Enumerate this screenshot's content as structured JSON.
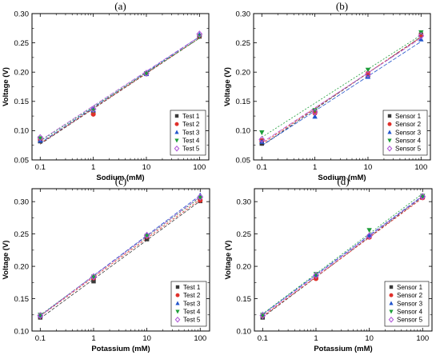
{
  "chart_data": [
    {
      "type": "scatter",
      "panel_label": "(a)",
      "xlabel": "Sodium (mM)",
      "ylabel": "Voltage (V)",
      "x_scale": "log",
      "x": [
        0.1,
        1,
        10,
        100
      ],
      "x_tick_labels": [
        "0.1",
        "1",
        "10",
        "100"
      ],
      "xlim": [
        0.07,
        150
      ],
      "ylim": [
        0.05,
        0.3
      ],
      "y_ticks": [
        0.05,
        0.1,
        0.15,
        0.2,
        0.25,
        0.3
      ],
      "y_tick_labels": [
        "0.05",
        "0.10",
        "0.15",
        "0.20",
        "0.25",
        "0.30"
      ],
      "legend_position": "bottom-right",
      "series": [
        {
          "name": "Test 1",
          "marker": "square",
          "color": "#3a3a3a",
          "values": [
            0.082,
            0.13,
            0.197,
            0.261
          ]
        },
        {
          "name": "Test 2",
          "marker": "circle",
          "color": "#e0302a",
          "values": [
            0.085,
            0.128,
            0.198,
            0.262
          ]
        },
        {
          "name": "Test 3",
          "marker": "triangle-up",
          "color": "#2255cc",
          "values": [
            0.083,
            0.135,
            0.197,
            0.264
          ]
        },
        {
          "name": "Test 4",
          "marker": "triangle-down",
          "color": "#1e9e3a",
          "values": [
            0.087,
            0.134,
            0.198,
            0.261
          ]
        },
        {
          "name": "Test 5",
          "marker": "diamond",
          "color": "#b05ad8",
          "values": [
            0.088,
            0.137,
            0.198,
            0.265
          ]
        }
      ]
    },
    {
      "type": "scatter",
      "panel_label": "(b)",
      "xlabel": "Sodium (mM)",
      "ylabel": "Voltage (V)",
      "x_scale": "log",
      "x": [
        0.1,
        1,
        10,
        100
      ],
      "x_tick_labels": [
        "0.1",
        "1",
        "10",
        "100"
      ],
      "xlim": [
        0.07,
        150
      ],
      "ylim": [
        0.05,
        0.3
      ],
      "y_ticks": [
        0.05,
        0.1,
        0.15,
        0.2,
        0.25,
        0.3
      ],
      "y_tick_labels": [
        "0.05",
        "0.10",
        "0.15",
        "0.20",
        "0.25",
        "0.30"
      ],
      "legend_position": "bottom-right",
      "series": [
        {
          "name": "Sensor 1",
          "marker": "square",
          "color": "#3a3a3a",
          "values": [
            0.078,
            0.133,
            0.195,
            0.264
          ]
        },
        {
          "name": "Sensor 2",
          "marker": "circle",
          "color": "#e0302a",
          "values": [
            0.083,
            0.13,
            0.198,
            0.263
          ]
        },
        {
          "name": "Sensor 3",
          "marker": "triangle-up",
          "color": "#2255cc",
          "values": [
            0.081,
            0.124,
            0.192,
            0.256
          ]
        },
        {
          "name": "Sensor 4",
          "marker": "triangle-down",
          "color": "#1e9e3a",
          "values": [
            0.097,
            0.135,
            0.204,
            0.268
          ]
        },
        {
          "name": "Sensor 5",
          "marker": "diamond",
          "color": "#b05ad8",
          "values": [
            0.085,
            0.132,
            0.196,
            0.262
          ]
        }
      ]
    },
    {
      "type": "scatter",
      "panel_label": "(c)",
      "xlabel": "Potassium (mM)",
      "ylabel": "Voltage (V)",
      "x_scale": "log",
      "x": [
        0.1,
        1,
        10,
        100
      ],
      "x_tick_labels": [
        "0.1",
        "1",
        "10",
        "100"
      ],
      "xlim": [
        0.07,
        150
      ],
      "ylim": [
        0.1,
        0.32
      ],
      "y_ticks": [
        0.1,
        0.15,
        0.2,
        0.25,
        0.3
      ],
      "y_tick_labels": [
        "0.10",
        "0.15",
        "0.20",
        "0.25",
        "0.30"
      ],
      "legend_position": "bottom-right",
      "series": [
        {
          "name": "Test 1",
          "marker": "square",
          "color": "#3a3a3a",
          "values": [
            0.121,
            0.177,
            0.242,
            0.301
          ]
        },
        {
          "name": "Test 2",
          "marker": "circle",
          "color": "#e0302a",
          "values": [
            0.123,
            0.182,
            0.246,
            0.302
          ]
        },
        {
          "name": "Test 3",
          "marker": "triangle-up",
          "color": "#2255cc",
          "values": [
            0.124,
            0.185,
            0.248,
            0.31
          ]
        },
        {
          "name": "Test 4",
          "marker": "triangle-down",
          "color": "#1e9e3a",
          "values": [
            0.125,
            0.184,
            0.247,
            0.306
          ]
        },
        {
          "name": "Test 5",
          "marker": "diamond",
          "color": "#b05ad8",
          "values": [
            0.124,
            0.184,
            0.248,
            0.307
          ]
        }
      ]
    },
    {
      "type": "scatter",
      "panel_label": "(d)",
      "xlabel": "Potassium (mM)",
      "ylabel": "Voltage (V)",
      "x_scale": "log",
      "x": [
        0.1,
        1,
        10,
        100
      ],
      "x_tick_labels": [
        "0.1",
        "1",
        "10",
        "100"
      ],
      "xlim": [
        0.07,
        150
      ],
      "ylim": [
        0.1,
        0.32
      ],
      "y_ticks": [
        0.1,
        0.15,
        0.2,
        0.25,
        0.3
      ],
      "y_tick_labels": [
        "0.10",
        "0.15",
        "0.20",
        "0.25",
        "0.30"
      ],
      "legend_position": "bottom-right",
      "series": [
        {
          "name": "Sensor 1",
          "marker": "square",
          "color": "#3a3a3a",
          "values": [
            0.121,
            0.183,
            0.246,
            0.307
          ]
        },
        {
          "name": "Sensor 2",
          "marker": "circle",
          "color": "#e0302a",
          "values": [
            0.124,
            0.181,
            0.245,
            0.306
          ]
        },
        {
          "name": "Sensor 3",
          "marker": "triangle-up",
          "color": "#2255cc",
          "values": [
            0.126,
            0.187,
            0.248,
            0.309
          ]
        },
        {
          "name": "Sensor 4",
          "marker": "triangle-down",
          "color": "#1e9e3a",
          "values": [
            0.125,
            0.188,
            0.256,
            0.309
          ]
        },
        {
          "name": "Sensor 5",
          "marker": "diamond",
          "color": "#b05ad8",
          "values": [
            0.124,
            0.186,
            0.247,
            0.308
          ]
        }
      ]
    }
  ]
}
